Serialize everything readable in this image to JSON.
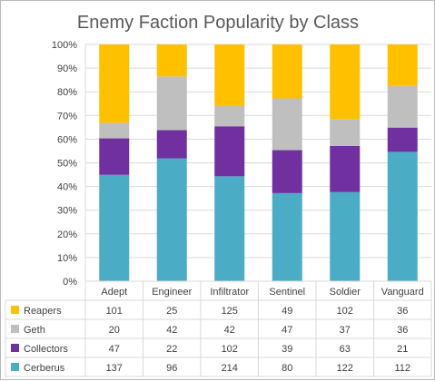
{
  "chart_data": {
    "type": "bar",
    "stacked": true,
    "normalized": true,
    "title": "Enemy Faction Popularity by Class",
    "categories": [
      "Adept",
      "Engineer",
      "Infiltrator",
      "Sentinel",
      "Soldier",
      "Vanguard"
    ],
    "series": [
      {
        "name": "Cerberus",
        "color": "#4bacc6",
        "values": [
          137,
          96,
          214,
          80,
          122,
          112
        ]
      },
      {
        "name": "Collectors",
        "color": "#7030a0",
        "values": [
          47,
          22,
          102,
          39,
          63,
          21
        ]
      },
      {
        "name": "Geth",
        "color": "#bfbfbf",
        "values": [
          20,
          42,
          42,
          47,
          37,
          36
        ]
      },
      {
        "name": "Reapers",
        "color": "#ffc000",
        "values": [
          101,
          25,
          125,
          49,
          102,
          36
        ]
      }
    ],
    "yticks": [
      "0%",
      "10%",
      "20%",
      "30%",
      "40%",
      "50%",
      "60%",
      "70%",
      "80%",
      "90%",
      "100%"
    ],
    "ylim": [
      0,
      100
    ],
    "grid": true,
    "legend": "data-table",
    "table_row_order": [
      "Reapers",
      "Geth",
      "Collectors",
      "Cerberus"
    ]
  }
}
